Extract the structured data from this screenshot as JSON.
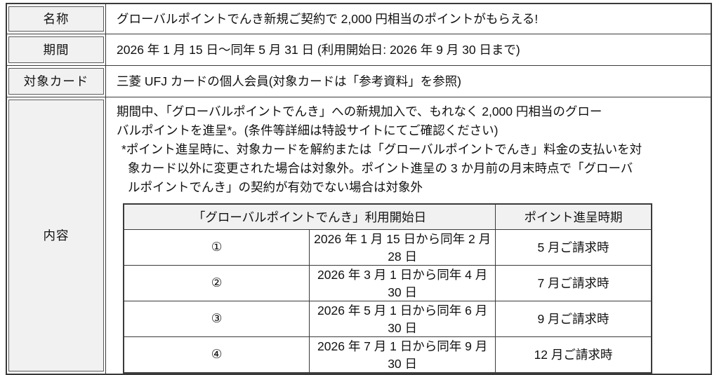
{
  "colors": {
    "border": "#3a3a3a",
    "label_bg": "#f1f1f1",
    "header_bg": "#f1f1f1",
    "text": "#111111"
  },
  "info_table": {
    "rows": [
      {
        "label": "名称",
        "value": "グローバルポイントでんき新規ご契約で 2,000 円相当のポイントがもらえる!"
      },
      {
        "label": "期間",
        "value": "2026 年 1 月 15 日〜同年 5 月 31 日 (利用開始日: 2026 年 9 月 30 日まで)"
      },
      {
        "label": "対象カード",
        "value": "三菱 UFJ カードの個人会員(対象カードは「参考資料」を参照)"
      },
      {
        "label": "内容"
      }
    ]
  },
  "content": {
    "para_lines": [
      "期間中、「グローバルポイントでんき」への新規加入で、もれなく 2,000 円相当のグロー",
      "バルポイントを進呈*。(条件等詳細は特設サイトにてご確認ください)"
    ],
    "note_lines": [
      "*ポイント進呈時に、対象カードを解約または「グローバルポイントでんき」料金の支払いを対",
      "象カード以外に変更された場合は対象外。ポイント進呈の 3 か月前の月末時点で「グローバ",
      "ルポイントでんき」の契約が有効でない場合は対象外"
    ]
  },
  "schedule_table": {
    "headers": {
      "usage_start": "「グローバルポイントでんき」利用開始日",
      "grant_timing": "ポイント進呈時期"
    },
    "rows": [
      {
        "no": "①",
        "period": "2026 年 1 月 15 日から同年 2 月 28 日",
        "timing": "5 月ご請求時"
      },
      {
        "no": "②",
        "period": "2026 年 3 月 1 日から同年 4 月 30 日",
        "timing": "7 月ご請求時"
      },
      {
        "no": "③",
        "period": "2026 年 5 月 1 日から同年 6 月 30 日",
        "timing": "9 月ご請求時"
      },
      {
        "no": "④",
        "period": "2026 年 7 月 1 日から同年 9 月 30 日",
        "timing": "12 月ご請求時"
      }
    ]
  }
}
